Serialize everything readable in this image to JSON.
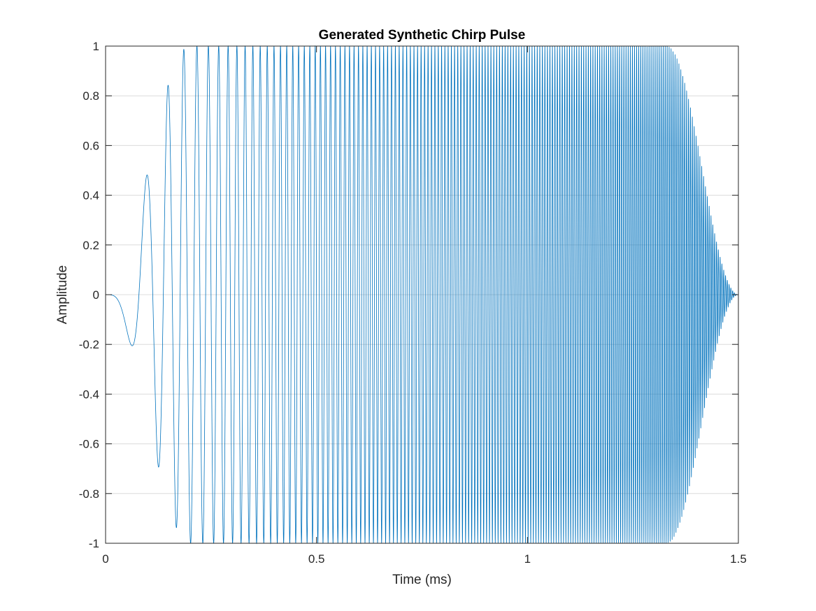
{
  "chart_data": {
    "type": "line",
    "title": "Generated Synthetic Chirp Pulse",
    "xlabel": "Time (ms)",
    "ylabel": "Amplitude",
    "xlim": [
      0,
      1.5
    ],
    "ylim": [
      -1,
      1
    ],
    "x_ticks": [
      0,
      0.5,
      1,
      1.5
    ],
    "x_tick_labels": [
      "0",
      "0.5",
      "1",
      "1.5"
    ],
    "y_ticks": [
      -1,
      -0.8,
      -0.6,
      -0.4,
      -0.2,
      0,
      0.2,
      0.4,
      0.6,
      0.8,
      1
    ],
    "y_tick_labels": [
      "-1",
      "-0.8",
      "-0.6",
      "-0.4",
      "-0.2",
      "0",
      "0.2",
      "0.4",
      "0.6",
      "0.8",
      "1"
    ],
    "grid": "horizontal",
    "legend": "none",
    "series": [
      {
        "color": "#0072BD",
        "signal": {
          "kind": "linear-chirp",
          "start_frequency_khz": 0,
          "end_frequency_khz": 240,
          "duration_ms": 1.5,
          "amplitude": 1,
          "fade_in_end_ms": 0.2,
          "fade_out_start_ms": 1.33
        }
      }
    ]
  }
}
